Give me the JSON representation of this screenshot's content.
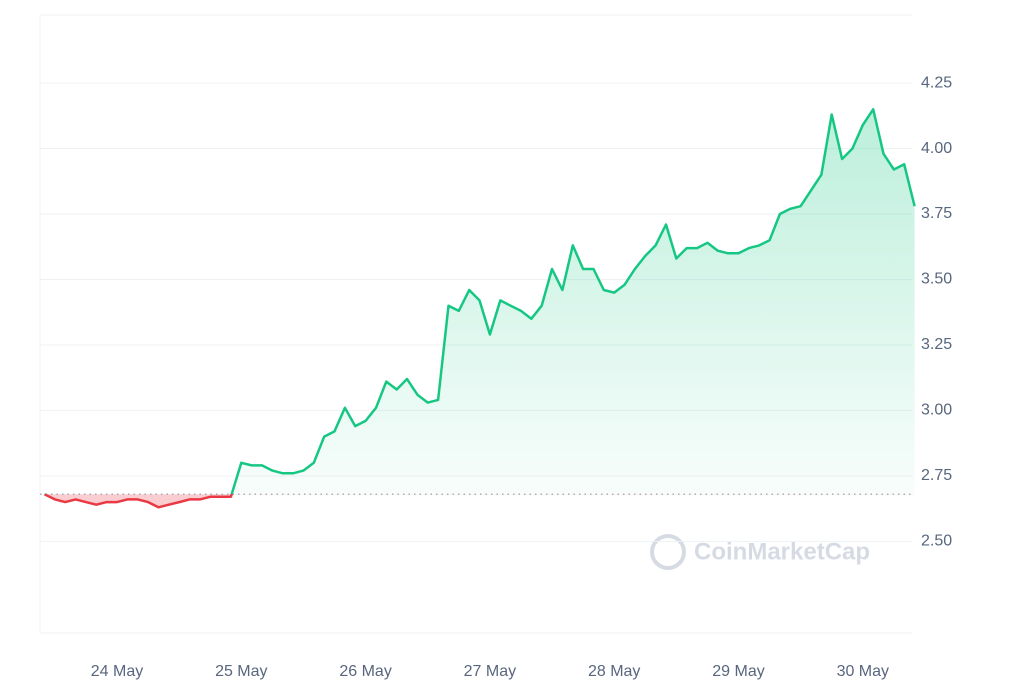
{
  "chart_data": {
    "type": "line",
    "watermark": "CoinMarketCap",
    "categories": [
      null,
      null,
      null,
      null,
      null,
      null,
      null,
      "24 May",
      null,
      null,
      null,
      null,
      null,
      null,
      null,
      null,
      null,
      null,
      null,
      "25 May",
      null,
      null,
      null,
      null,
      null,
      null,
      null,
      null,
      null,
      null,
      null,
      "26 May",
      null,
      null,
      null,
      null,
      null,
      null,
      null,
      null,
      null,
      null,
      null,
      "27 May",
      null,
      null,
      null,
      null,
      null,
      null,
      null,
      null,
      null,
      null,
      null,
      "28 May",
      null,
      null,
      null,
      null,
      null,
      null,
      null,
      null,
      null,
      null,
      null,
      "29 May",
      null,
      null,
      null,
      null,
      null,
      null,
      null,
      null,
      null,
      null,
      null,
      "30 May",
      null,
      null,
      null,
      null,
      null
    ],
    "values": [
      2.68,
      2.66,
      2.65,
      2.66,
      2.65,
      2.64,
      2.65,
      2.65,
      2.66,
      2.66,
      2.65,
      2.63,
      2.64,
      2.65,
      2.66,
      2.66,
      2.67,
      2.67,
      2.67,
      2.8,
      2.79,
      2.79,
      2.77,
      2.76,
      2.76,
      2.77,
      2.8,
      2.9,
      2.92,
      3.01,
      2.94,
      2.96,
      3.01,
      3.11,
      3.08,
      3.12,
      3.06,
      3.03,
      3.04,
      3.4,
      3.38,
      3.46,
      3.42,
      3.29,
      3.42,
      3.4,
      3.38,
      3.35,
      3.4,
      3.54,
      3.46,
      3.63,
      3.54,
      3.54,
      3.46,
      3.45,
      3.48,
      3.54,
      3.59,
      3.63,
      3.71,
      3.58,
      3.62,
      3.62,
      3.64,
      3.61,
      3.6,
      3.6,
      3.62,
      3.63,
      3.65,
      3.75,
      3.77,
      3.78,
      3.84,
      3.9,
      4.13,
      3.96,
      4.0,
      4.09,
      4.15,
      3.98,
      3.92,
      3.94,
      3.78
    ],
    "baseline": 2.68,
    "up_color": "#16c784",
    "down_color": "#ea3943",
    "ylim": [
      2.15,
      4.51
    ],
    "yticks": [
      {
        "value": 2.5,
        "label": "2.50"
      },
      {
        "value": 2.75,
        "label": "2.75"
      },
      {
        "value": 3.0,
        "label": "3.00"
      },
      {
        "value": 3.25,
        "label": "3.25"
      },
      {
        "value": 3.5,
        "label": "3.50"
      },
      {
        "value": 3.75,
        "label": "3.75"
      },
      {
        "value": 4.0,
        "label": "4.00"
      },
      {
        "value": 4.25,
        "label": "4.25"
      }
    ],
    "grid": true
  }
}
